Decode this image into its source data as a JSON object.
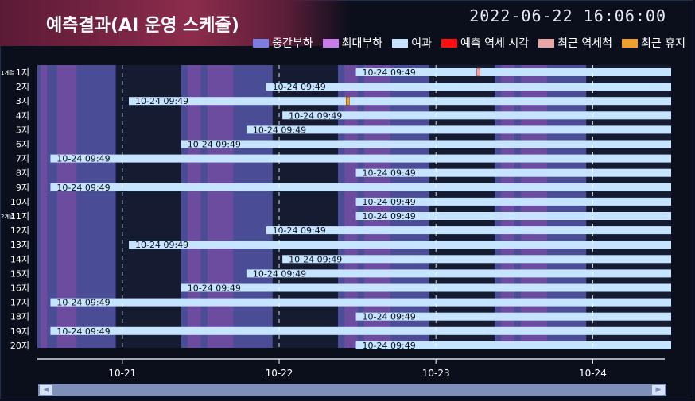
{
  "header": {
    "title": "예측결과(AI 운영 스케줄)",
    "datetime": "2022-06-22  16:06:00"
  },
  "legend": [
    {
      "label": "중간부하",
      "color": "#7b7de0"
    },
    {
      "label": "최대부하",
      "color": "#c77ee8"
    },
    {
      "label": "여과",
      "color": "#c6e4ff"
    },
    {
      "label": "예측 역세 시각",
      "color": "#ff1010"
    },
    {
      "label": "최근 역세척",
      "color": "#e9a6a6"
    },
    {
      "label": "최근 휴지",
      "color": "#f0a030"
    }
  ],
  "scrollbar": {
    "left_arrow": "◀",
    "right_arrow": "▶"
  },
  "chart_data": {
    "type": "gantt",
    "x_axis": {
      "type": "time",
      "range": [
        "2022-10-20 11:00",
        "2022-10-24 12:00"
      ],
      "ticks": [
        {
          "label": "10-21",
          "value": "2022-10-21 00:00"
        },
        {
          "label": "10-22",
          "value": "2022-10-22 00:00"
        },
        {
          "label": "10-23",
          "value": "2022-10-23 00:00"
        },
        {
          "label": "10-24",
          "value": "2022-10-24 00:00"
        }
      ]
    },
    "load_periods": [
      {
        "type": "중간부하",
        "start": "2022-10-20 11:00",
        "end": "2022-10-20 23:00"
      },
      {
        "type": "최대부하",
        "start": "2022-10-20 11:30",
        "end": "2022-10-20 12:30"
      },
      {
        "type": "최대부하",
        "start": "2022-10-20 14:00",
        "end": "2022-10-20 17:00"
      },
      {
        "type": "중간부하",
        "start": "2022-10-21 09:00",
        "end": "2022-10-21 23:00"
      },
      {
        "type": "최대부하",
        "start": "2022-10-21 10:00",
        "end": "2022-10-21 12:00"
      },
      {
        "type": "최대부하",
        "start": "2022-10-21 13:00",
        "end": "2022-10-21 17:00"
      },
      {
        "type": "중간부하",
        "start": "2022-10-22 09:00",
        "end": "2022-10-22 23:00"
      },
      {
        "type": "최대부하",
        "start": "2022-10-22 10:00",
        "end": "2022-10-22 12:00"
      },
      {
        "type": "최대부하",
        "start": "2022-10-22 13:00",
        "end": "2022-10-22 17:00"
      },
      {
        "type": "중간부하",
        "start": "2022-10-23 09:00",
        "end": "2022-10-23 23:00"
      },
      {
        "type": "최대부하",
        "start": "2022-10-23 10:00",
        "end": "2022-10-23 12:00"
      },
      {
        "type": "최대부하",
        "start": "2022-10-23 13:00",
        "end": "2022-10-23 17:00"
      }
    ],
    "rows": [
      {
        "label": "1지",
        "group_label": "1계열",
        "filtration_start": "2022-10-22 11:45",
        "filtration_end": "2022-10-24 12:00",
        "bar_label": "10-24 09:49",
        "recent_backwash": "2022-10-23 06:30"
      },
      {
        "label": "2지",
        "filtration_start": "2022-10-21 22:00",
        "filtration_end": "2022-10-24 12:00",
        "bar_label": "10-24 09:49"
      },
      {
        "label": "3지",
        "filtration_start": "2022-10-21 01:00",
        "filtration_end": "2022-10-24 12:00",
        "bar_label": "10-24 09:49",
        "recent_rest": "2022-10-22 10:30"
      },
      {
        "label": "4지",
        "filtration_start": "2022-10-22 00:30",
        "filtration_end": "2022-10-24 12:00",
        "bar_label": "10-24 09:49"
      },
      {
        "label": "5지",
        "filtration_start": "2022-10-21 19:00",
        "filtration_end": "2022-10-24 12:00",
        "bar_label": "10-24 09:49"
      },
      {
        "label": "6지",
        "filtration_start": "2022-10-21 09:00",
        "filtration_end": "2022-10-24 12:00",
        "bar_label": "10-24 09:49"
      },
      {
        "label": "7지",
        "filtration_start": "2022-10-20 13:00",
        "filtration_end": "2022-10-24 12:00",
        "bar_label": "10-24 09:49"
      },
      {
        "label": "8지",
        "filtration_start": "2022-10-22 11:45",
        "filtration_end": "2022-10-24 12:00",
        "bar_label": "10-24 09:49"
      },
      {
        "label": "9지",
        "filtration_start": "2022-10-20 13:00",
        "filtration_end": "2022-10-24 12:00",
        "bar_label": "10-24 09:49"
      },
      {
        "label": "10지",
        "filtration_start": "2022-10-22 11:45",
        "filtration_end": "2022-10-24 12:00",
        "bar_label": "10-24 09:49"
      },
      {
        "label": "11지",
        "group_label": "2계열",
        "filtration_start": "2022-10-22 11:45",
        "filtration_end": "2022-10-24 12:00",
        "bar_label": "10-24 09:49"
      },
      {
        "label": "12지",
        "filtration_start": "2022-10-21 22:00",
        "filtration_end": "2022-10-24 12:00",
        "bar_label": "10-24 09:49"
      },
      {
        "label": "13지",
        "filtration_start": "2022-10-21 01:00",
        "filtration_end": "2022-10-24 12:00",
        "bar_label": "10-24 09:49"
      },
      {
        "label": "14지",
        "filtration_start": "2022-10-22 00:30",
        "filtration_end": "2022-10-24 12:00",
        "bar_label": "10-24 09:49"
      },
      {
        "label": "15지",
        "filtration_start": "2022-10-21 19:00",
        "filtration_end": "2022-10-24 12:00",
        "bar_label": "10-24 09:49"
      },
      {
        "label": "16지",
        "filtration_start": "2022-10-21 09:00",
        "filtration_end": "2022-10-24 12:00",
        "bar_label": "10-24 09:49"
      },
      {
        "label": "17지",
        "filtration_start": "2022-10-20 13:00",
        "filtration_end": "2022-10-24 12:00",
        "bar_label": "10-24 09:49"
      },
      {
        "label": "18지",
        "filtration_start": "2022-10-22 11:45",
        "filtration_end": "2022-10-24 12:00",
        "bar_label": "10-24 09:49"
      },
      {
        "label": "19지",
        "filtration_start": "2022-10-20 13:00",
        "filtration_end": "2022-10-24 12:00",
        "bar_label": "10-24 09:49"
      },
      {
        "label": "20지",
        "filtration_start": "2022-10-22 11:45",
        "filtration_end": "2022-10-24 12:00",
        "bar_label": "10-24 09:49"
      }
    ]
  }
}
